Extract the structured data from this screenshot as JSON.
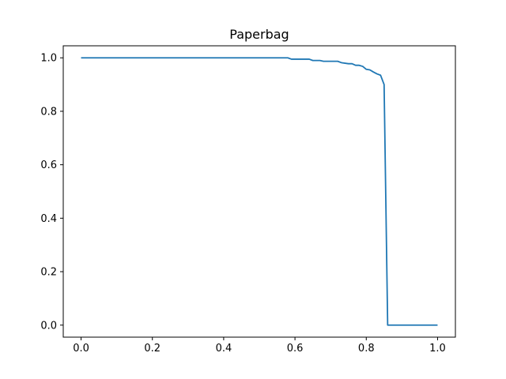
{
  "chart_data": {
    "type": "line",
    "title": "Paperbag",
    "xlabel": "",
    "ylabel": "",
    "xlim": [
      -0.05,
      1.05
    ],
    "ylim": [
      -0.045,
      1.045
    ],
    "grid": false,
    "xticks": [
      0.0,
      0.2,
      0.4,
      0.6,
      0.8,
      1.0
    ],
    "xtick_labels": [
      "0.0",
      "0.2",
      "0.4",
      "0.6",
      "0.8",
      "1.0"
    ],
    "yticks": [
      0.0,
      0.2,
      0.4,
      0.6,
      0.8,
      1.0
    ],
    "ytick_labels": [
      "0.0",
      "0.2",
      "0.4",
      "0.6",
      "0.8",
      "1.0"
    ],
    "series": [
      {
        "color": "#1f77b4",
        "x": [
          0.0,
          0.58,
          0.59,
          0.64,
          0.65,
          0.67,
          0.68,
          0.72,
          0.73,
          0.75,
          0.76,
          0.77,
          0.78,
          0.79,
          0.8,
          0.81,
          0.82,
          0.83,
          0.84,
          0.85,
          0.86,
          1.0
        ],
        "y": [
          1.0,
          1.0,
          0.995,
          0.995,
          0.99,
          0.99,
          0.987,
          0.987,
          0.982,
          0.978,
          0.978,
          0.972,
          0.972,
          0.968,
          0.957,
          0.955,
          0.947,
          0.94,
          0.935,
          0.9,
          0.0,
          0.0
        ]
      }
    ]
  }
}
